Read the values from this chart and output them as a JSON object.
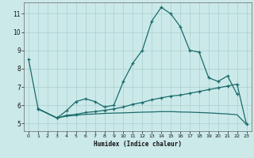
{
  "xlabel": "Humidex (Indice chaleur)",
  "bg_color": "#cce9e9",
  "grid_color": "#aacfcf",
  "line_color": "#1a6b6b",
  "xlim": [
    -0.5,
    23.5
  ],
  "ylim": [
    4.6,
    11.6
  ],
  "xticks": [
    0,
    1,
    2,
    3,
    4,
    5,
    6,
    7,
    8,
    9,
    10,
    11,
    12,
    13,
    14,
    15,
    16,
    17,
    18,
    19,
    20,
    21,
    22,
    23
  ],
  "yticks": [
    5,
    6,
    7,
    8,
    9,
    10,
    11
  ],
  "series1_x": [
    0,
    1,
    3,
    4,
    5,
    6,
    7,
    8,
    9,
    10,
    11,
    12,
    13,
    14,
    15,
    16,
    17,
    18,
    19,
    20,
    21,
    22
  ],
  "series1_y": [
    8.5,
    5.8,
    5.3,
    5.7,
    6.2,
    6.35,
    6.2,
    5.9,
    6.0,
    7.3,
    8.3,
    9.0,
    10.6,
    11.35,
    11.0,
    10.3,
    9.0,
    8.9,
    7.5,
    7.3,
    7.6,
    6.6
  ],
  "series2_x": [
    1,
    3,
    4,
    5,
    6,
    7,
    8,
    9,
    10,
    11,
    12,
    13,
    14,
    15,
    16,
    17,
    18,
    19,
    20,
    21,
    22,
    23
  ],
  "series2_y": [
    5.8,
    5.3,
    5.45,
    5.5,
    5.6,
    5.65,
    5.72,
    5.8,
    5.9,
    6.05,
    6.15,
    6.3,
    6.4,
    6.5,
    6.55,
    6.65,
    6.75,
    6.85,
    6.95,
    7.05,
    7.15,
    4.95
  ],
  "series3_x": [
    1,
    3,
    4,
    5,
    6,
    7,
    8,
    9,
    10,
    11,
    12,
    13,
    14,
    15,
    16,
    17,
    18,
    19,
    20,
    21,
    22,
    23
  ],
  "series3_y": [
    5.8,
    5.3,
    5.4,
    5.45,
    5.5,
    5.52,
    5.55,
    5.57,
    5.58,
    5.6,
    5.62,
    5.63,
    5.65,
    5.65,
    5.63,
    5.62,
    5.6,
    5.58,
    5.55,
    5.52,
    5.48,
    4.95
  ]
}
